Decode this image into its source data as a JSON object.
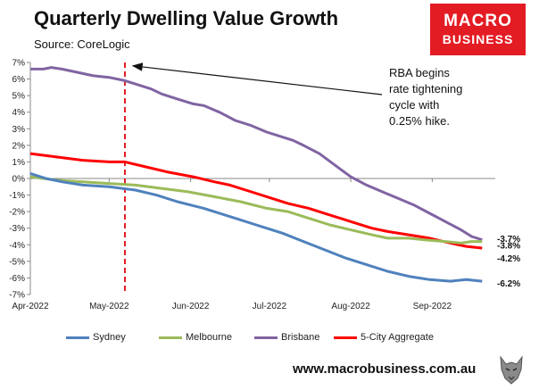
{
  "header": {
    "title": "Quarterly Dwelling Value Growth",
    "subtitle": "Source: CoreLogic"
  },
  "logo": {
    "line1": "MACRO",
    "line2": "BUSINESS"
  },
  "footer": {
    "website": "www.macrobusiness.com.au"
  },
  "chart_data": {
    "type": "line",
    "x_labels": [
      "Apr-2022",
      "May-2022",
      "Jun-2022",
      "Jul-2022",
      "Aug-2022",
      "Sep-2022"
    ],
    "x_positions": [
      0,
      30,
      61,
      91,
      122,
      153
    ],
    "x_range": [
      0,
      177
    ],
    "ylim": [
      -7,
      7
    ],
    "yticks": [
      7,
      6,
      5,
      4,
      3,
      2,
      1,
      0,
      -1,
      -2,
      -3,
      -4,
      -5,
      -6,
      -7
    ],
    "ytick_suffix": "%",
    "grid": false,
    "legend_position": "bottom",
    "vline": {
      "x": 36,
      "color": "#e31b23",
      "style": "dashed"
    },
    "annotation": {
      "lines": [
        "RBA begins",
        "rate tightening",
        "cycle with",
        "0.25% hike."
      ],
      "arrow_to": {
        "x": 37,
        "y": 6.8
      }
    },
    "series": [
      {
        "name": "Brisbane",
        "color": "#8064a2",
        "end_label": "-3.7%",
        "points": [
          [
            0,
            6.6
          ],
          [
            5,
            6.6
          ],
          [
            8,
            6.7
          ],
          [
            12,
            6.6
          ],
          [
            18,
            6.4
          ],
          [
            24,
            6.2
          ],
          [
            30,
            6.1
          ],
          [
            36,
            5.9
          ],
          [
            40,
            5.7
          ],
          [
            46,
            5.4
          ],
          [
            50,
            5.1
          ],
          [
            56,
            4.8
          ],
          [
            62,
            4.5
          ],
          [
            66,
            4.4
          ],
          [
            72,
            4.0
          ],
          [
            78,
            3.5
          ],
          [
            84,
            3.2
          ],
          [
            90,
            2.8
          ],
          [
            96,
            2.5
          ],
          [
            100,
            2.3
          ],
          [
            104,
            2.0
          ],
          [
            110,
            1.5
          ],
          [
            116,
            0.8
          ],
          [
            122,
            0.1
          ],
          [
            128,
            -0.4
          ],
          [
            134,
            -0.8
          ],
          [
            140,
            -1.2
          ],
          [
            146,
            -1.6
          ],
          [
            152,
            -2.1
          ],
          [
            158,
            -2.6
          ],
          [
            164,
            -3.1
          ],
          [
            168,
            -3.5
          ],
          [
            172,
            -3.7
          ]
        ]
      },
      {
        "name": "5-City Aggregate",
        "color": "#ff0000",
        "end_label": "-4.2%",
        "points": [
          [
            0,
            1.5
          ],
          [
            10,
            1.3
          ],
          [
            20,
            1.1
          ],
          [
            30,
            1.0
          ],
          [
            36,
            1.0
          ],
          [
            44,
            0.7
          ],
          [
            52,
            0.4
          ],
          [
            62,
            0.1
          ],
          [
            70,
            -0.2
          ],
          [
            76,
            -0.4
          ],
          [
            82,
            -0.7
          ],
          [
            90,
            -1.1
          ],
          [
            98,
            -1.5
          ],
          [
            106,
            -1.8
          ],
          [
            114,
            -2.2
          ],
          [
            122,
            -2.6
          ],
          [
            130,
            -3.0
          ],
          [
            136,
            -3.2
          ],
          [
            144,
            -3.4
          ],
          [
            152,
            -3.6
          ],
          [
            160,
            -3.9
          ],
          [
            166,
            -4.1
          ],
          [
            172,
            -4.2
          ]
        ]
      },
      {
        "name": "Melbourne",
        "color": "#9bbb59",
        "end_label": "-3.8%",
        "points": [
          [
            0,
            0.1
          ],
          [
            10,
            -0.1
          ],
          [
            20,
            -0.2
          ],
          [
            30,
            -0.3
          ],
          [
            40,
            -0.4
          ],
          [
            50,
            -0.6
          ],
          [
            60,
            -0.8
          ],
          [
            70,
            -1.1
          ],
          [
            80,
            -1.4
          ],
          [
            90,
            -1.8
          ],
          [
            98,
            -2.0
          ],
          [
            106,
            -2.4
          ],
          [
            114,
            -2.8
          ],
          [
            122,
            -3.1
          ],
          [
            130,
            -3.4
          ],
          [
            136,
            -3.6
          ],
          [
            144,
            -3.6
          ],
          [
            150,
            -3.7
          ],
          [
            158,
            -3.8
          ],
          [
            164,
            -3.9
          ],
          [
            168,
            -3.8
          ],
          [
            172,
            -3.8
          ]
        ]
      },
      {
        "name": "Sydney",
        "color": "#4f81bd",
        "end_label": "-6.2%",
        "points": [
          [
            0,
            0.3
          ],
          [
            6,
            0.0
          ],
          [
            12,
            -0.2
          ],
          [
            20,
            -0.4
          ],
          [
            30,
            -0.5
          ],
          [
            40,
            -0.7
          ],
          [
            48,
            -1.0
          ],
          [
            56,
            -1.4
          ],
          [
            66,
            -1.8
          ],
          [
            76,
            -2.3
          ],
          [
            86,
            -2.8
          ],
          [
            96,
            -3.3
          ],
          [
            104,
            -3.8
          ],
          [
            112,
            -4.3
          ],
          [
            120,
            -4.8
          ],
          [
            128,
            -5.2
          ],
          [
            136,
            -5.6
          ],
          [
            144,
            -5.9
          ],
          [
            152,
            -6.1
          ],
          [
            160,
            -6.2
          ],
          [
            166,
            -6.1
          ],
          [
            172,
            -6.2
          ]
        ]
      }
    ]
  }
}
